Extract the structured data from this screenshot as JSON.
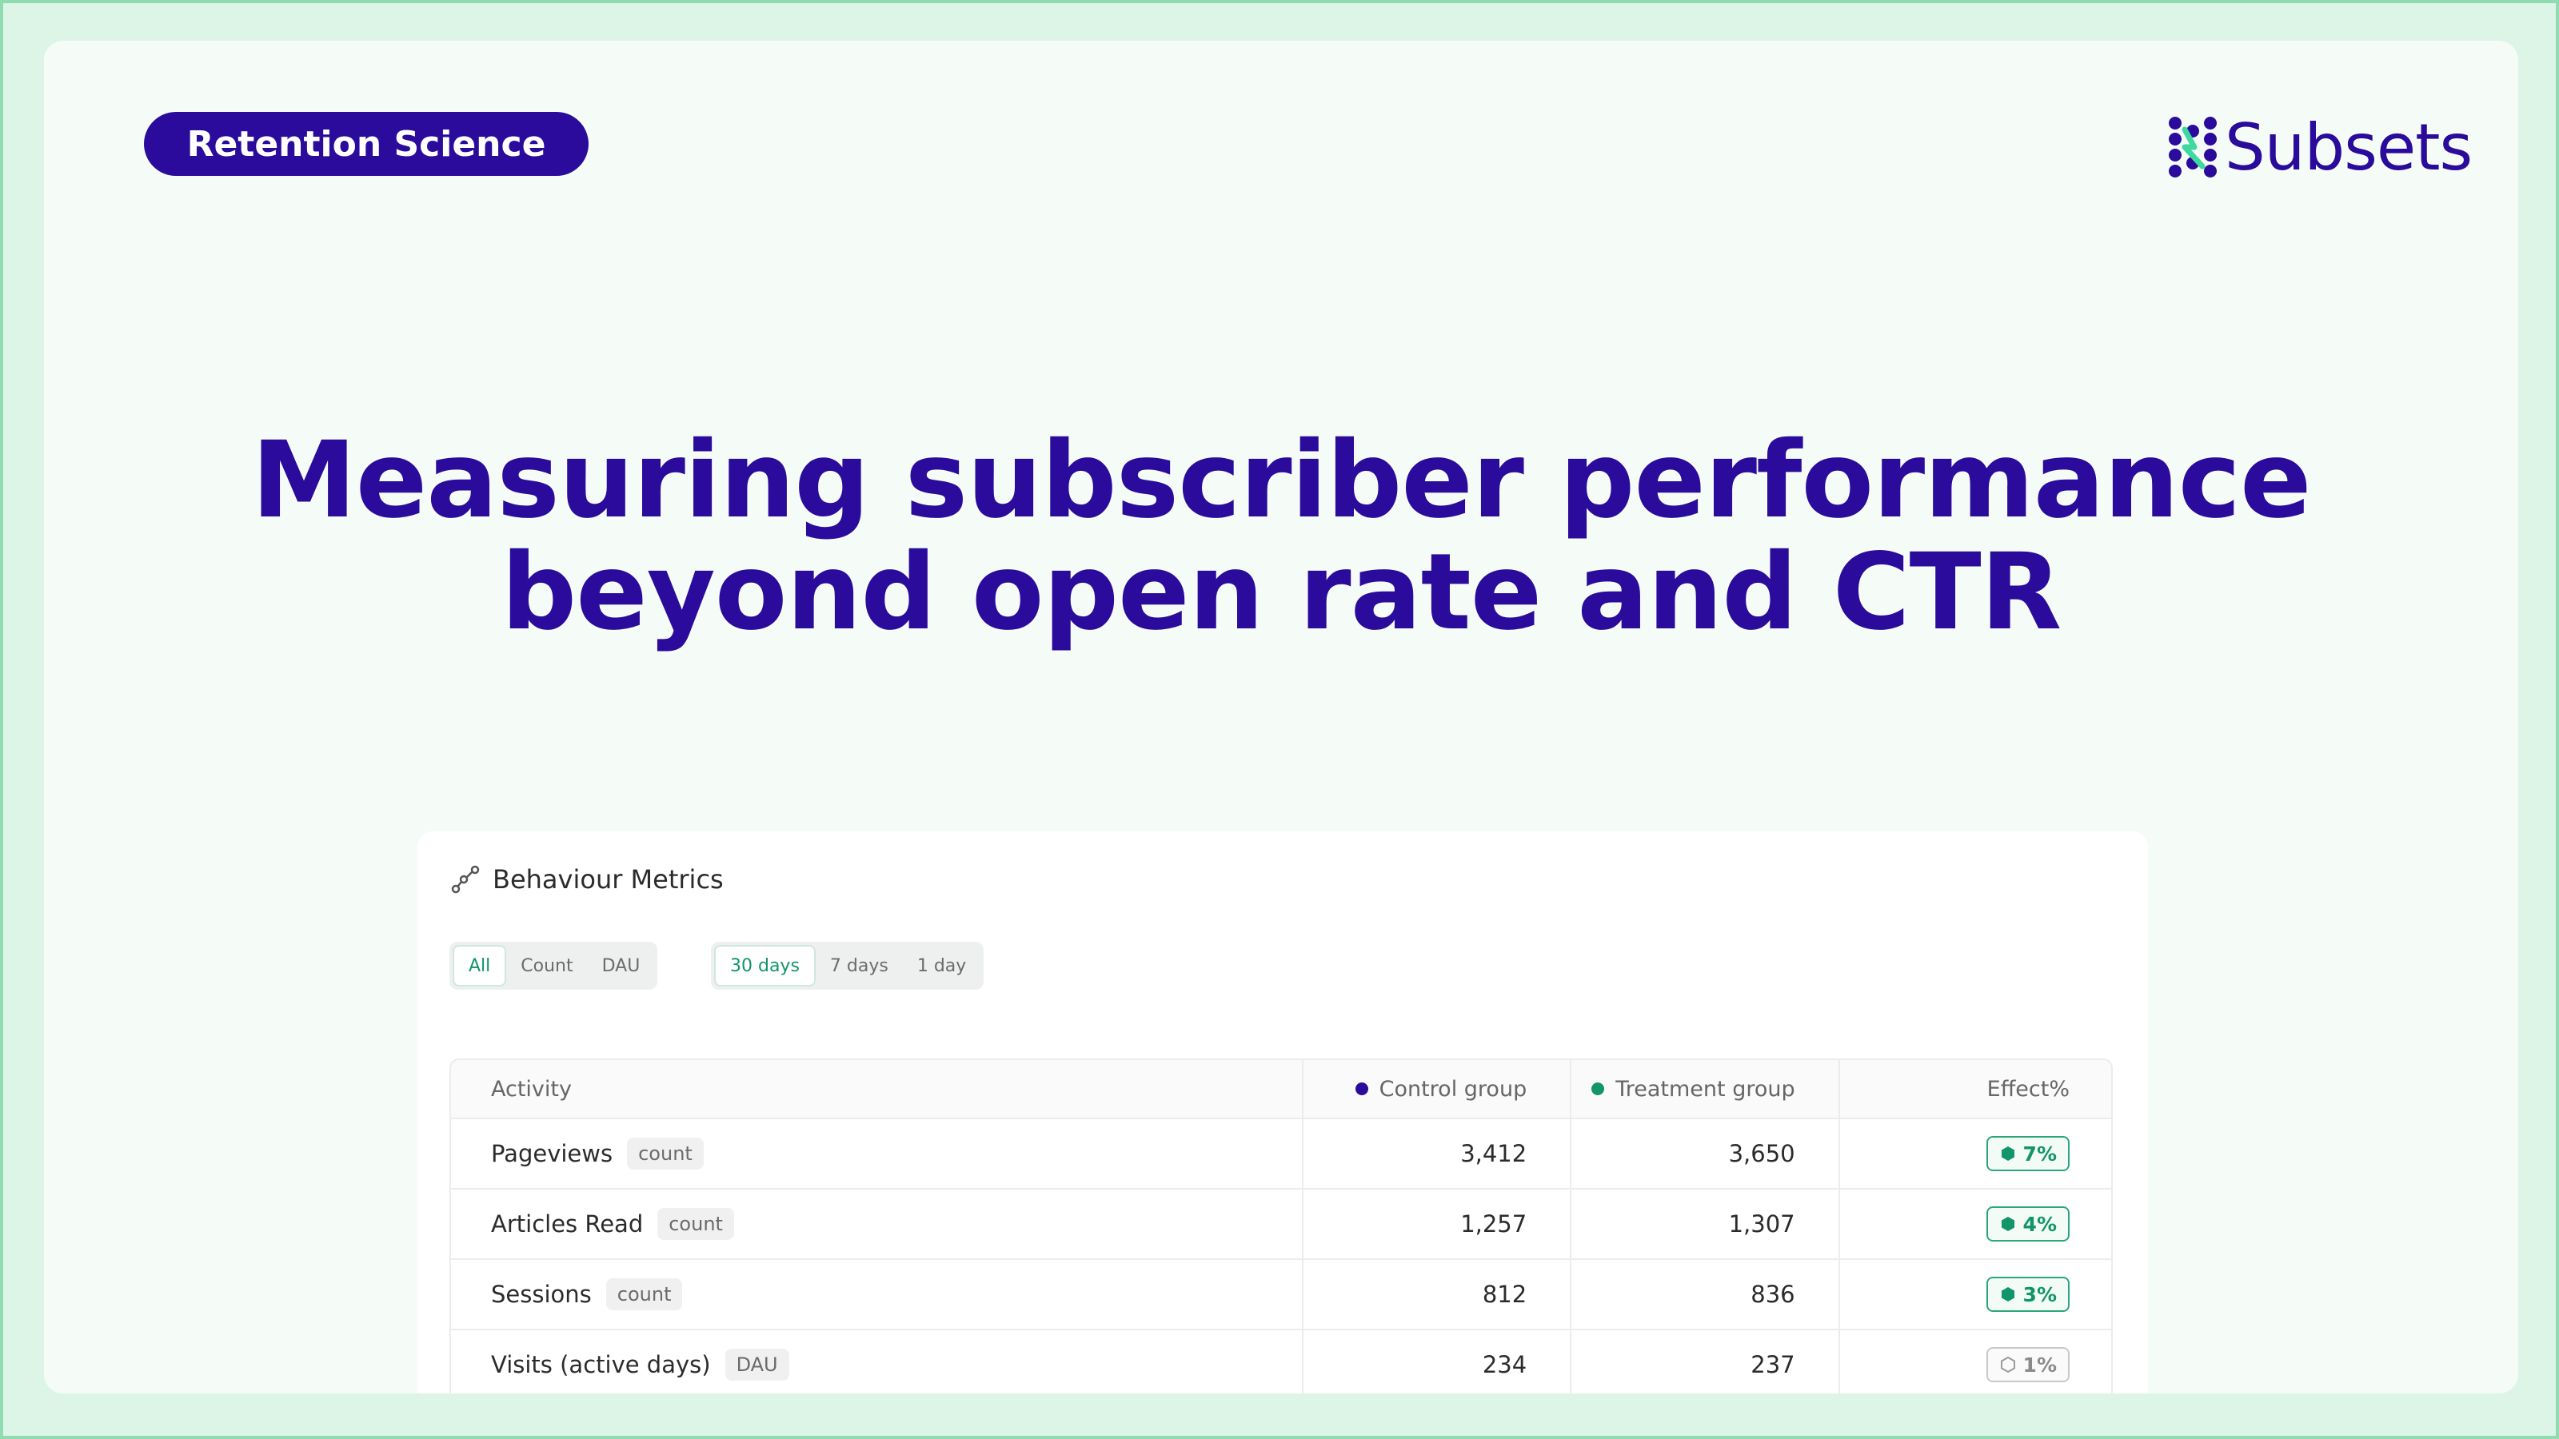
{
  "tag": "Retention Science",
  "brand": "Subsets",
  "headline": {
    "line1": "Measuring subscriber performance",
    "line2": "beyond open rate and CTR"
  },
  "panel": {
    "title": "Behaviour Metrics",
    "filters": {
      "type": [
        "All",
        "Count",
        "DAU"
      ],
      "type_selected": "All",
      "period": [
        "30 days",
        "7 days",
        "1 day"
      ],
      "period_selected": "30 days"
    },
    "columns": [
      "Activity",
      "Control group",
      "Treatment group",
      "Effect%"
    ],
    "legend_colors": {
      "control": "#2a0b9c",
      "treatment": "#12956a"
    },
    "rows": [
      {
        "activity": "Pageviews",
        "unit": "count",
        "control": "3,412",
        "treatment": "3,650",
        "effect": "7%",
        "status": "positive"
      },
      {
        "activity": "Articles Read",
        "unit": "count",
        "control": "1,257",
        "treatment": "1,307",
        "effect": "4%",
        "status": "positive"
      },
      {
        "activity": "Sessions",
        "unit": "count",
        "control": "812",
        "treatment": "836",
        "effect": "3%",
        "status": "positive"
      },
      {
        "activity": "Visits (active days)",
        "unit": "DAU",
        "control": "234",
        "treatment": "237",
        "effect": "1%",
        "status": "neutral"
      }
    ]
  },
  "colors": {
    "brand": "#2a0b9c",
    "accent": "#12956a",
    "frame_border": "#8fdcb0",
    "frame_bg": "#dcf5e6"
  }
}
